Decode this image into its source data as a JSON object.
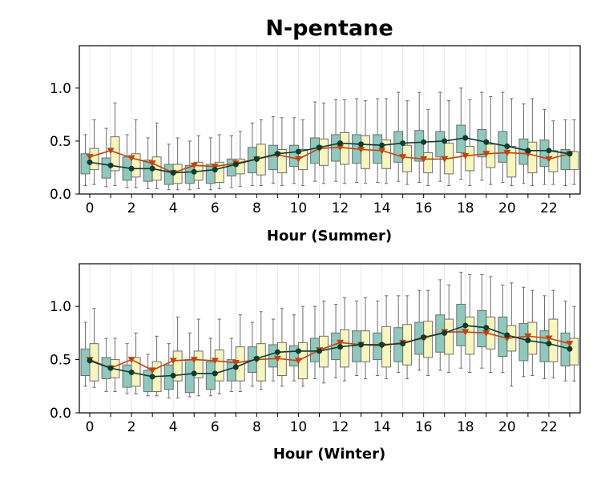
{
  "figure_title": "N-pentane",
  "chart_data": [
    {
      "type": "box",
      "name": "summer",
      "xlabel": "Hour (Summer)",
      "ylabel": "",
      "xlim": [
        -0.5,
        23.5
      ],
      "ylim": [
        0,
        1.4
      ],
      "x_ticks": [
        "0",
        "2",
        "4",
        "6",
        "8",
        "10",
        "12",
        "14",
        "16",
        "18",
        "20",
        "22"
      ],
      "y_ticks": [
        "0.0",
        "0.5",
        "1.0"
      ],
      "hours": [
        0,
        1,
        2,
        3,
        4,
        5,
        6,
        7,
        8,
        9,
        10,
        11,
        12,
        13,
        14,
        15,
        16,
        17,
        18,
        19,
        20,
        21,
        22,
        23
      ],
      "box_colors": {
        "teal": "#8fc8bd",
        "yellow": "#f8f6bf"
      },
      "line_colors": {
        "circles": "#0d3b2e",
        "triangles": "#c0440e"
      },
      "series": [
        {
          "name": "teal boxes",
          "boxes": [
            {
              "lw": 0.08,
              "q1": 0.19,
              "q3": 0.38,
              "uw": 0.56
            },
            {
              "lw": 0.07,
              "q1": 0.15,
              "q3": 0.34,
              "uw": 0.62
            },
            {
              "lw": 0.06,
              "q1": 0.13,
              "q3": 0.35,
              "uw": 0.56
            },
            {
              "lw": 0.05,
              "q1": 0.12,
              "q3": 0.32,
              "uw": 0.53
            },
            {
              "lw": 0.04,
              "q1": 0.09,
              "q3": 0.28,
              "uw": 0.47
            },
            {
              "lw": 0.04,
              "q1": 0.1,
              "q3": 0.27,
              "uw": 0.5
            },
            {
              "lw": 0.04,
              "q1": 0.1,
              "q3": 0.28,
              "uw": 0.53
            },
            {
              "lw": 0.06,
              "q1": 0.17,
              "q3": 0.33,
              "uw": 0.55
            },
            {
              "lw": 0.08,
              "q1": 0.2,
              "q3": 0.44,
              "uw": 0.67
            },
            {
              "lw": 0.1,
              "q1": 0.23,
              "q3": 0.46,
              "uw": 0.73
            },
            {
              "lw": 0.1,
              "q1": 0.26,
              "q3": 0.46,
              "uw": 0.72
            },
            {
              "lw": 0.12,
              "q1": 0.29,
              "q3": 0.53,
              "uw": 0.87
            },
            {
              "lw": 0.12,
              "q1": 0.31,
              "q3": 0.56,
              "uw": 0.89
            },
            {
              "lw": 0.11,
              "q1": 0.29,
              "q3": 0.56,
              "uw": 0.9
            },
            {
              "lw": 0.11,
              "q1": 0.29,
              "q3": 0.56,
              "uw": 0.9
            },
            {
              "lw": 0.12,
              "q1": 0.3,
              "q3": 0.59,
              "uw": 0.96
            },
            {
              "lw": 0.11,
              "q1": 0.31,
              "q3": 0.6,
              "uw": 0.96
            },
            {
              "lw": 0.12,
              "q1": 0.35,
              "q3": 0.59,
              "uw": 0.96
            },
            {
              "lw": 0.14,
              "q1": 0.39,
              "q3": 0.65,
              "uw": 1.0
            },
            {
              "lw": 0.13,
              "q1": 0.35,
              "q3": 0.61,
              "uw": 0.96
            },
            {
              "lw": 0.11,
              "q1": 0.3,
              "q3": 0.59,
              "uw": 0.96
            },
            {
              "lw": 0.1,
              "q1": 0.28,
              "q3": 0.52,
              "uw": 0.85
            },
            {
              "lw": 0.09,
              "q1": 0.26,
              "q3": 0.51,
              "uw": 0.8
            },
            {
              "lw": 0.08,
              "q1": 0.23,
              "q3": 0.42,
              "uw": 0.7
            }
          ]
        },
        {
          "name": "yellow boxes",
          "boxes": [
            {
              "lw": 0.09,
              "q1": 0.23,
              "q3": 0.43,
              "uw": 0.7
            },
            {
              "lw": 0.08,
              "q1": 0.22,
              "q3": 0.54,
              "uw": 0.86
            },
            {
              "lw": 0.06,
              "q1": 0.16,
              "q3": 0.38,
              "uw": 0.7
            },
            {
              "lw": 0.05,
              "q1": 0.13,
              "q3": 0.35,
              "uw": 0.67
            },
            {
              "lw": 0.04,
              "q1": 0.1,
              "q3": 0.28,
              "uw": 0.53
            },
            {
              "lw": 0.05,
              "q1": 0.13,
              "q3": 0.3,
              "uw": 0.55
            },
            {
              "lw": 0.05,
              "q1": 0.11,
              "q3": 0.3,
              "uw": 0.56
            },
            {
              "lw": 0.07,
              "q1": 0.19,
              "q3": 0.33,
              "uw": 0.59
            },
            {
              "lw": 0.08,
              "q1": 0.18,
              "q3": 0.47,
              "uw": 0.7
            },
            {
              "lw": 0.08,
              "q1": 0.2,
              "q3": 0.42,
              "uw": 0.72
            },
            {
              "lw": 0.08,
              "q1": 0.23,
              "q3": 0.42,
              "uw": 0.7
            },
            {
              "lw": 0.1,
              "q1": 0.27,
              "q3": 0.52,
              "uw": 0.86
            },
            {
              "lw": 0.1,
              "q1": 0.28,
              "q3": 0.58,
              "uw": 0.89
            },
            {
              "lw": 0.1,
              "q1": 0.24,
              "q3": 0.55,
              "uw": 0.88
            },
            {
              "lw": 0.1,
              "q1": 0.24,
              "q3": 0.51,
              "uw": 0.9
            },
            {
              "lw": 0.09,
              "q1": 0.21,
              "q3": 0.46,
              "uw": 0.88
            },
            {
              "lw": 0.08,
              "q1": 0.2,
              "q3": 0.39,
              "uw": 0.8
            },
            {
              "lw": 0.08,
              "q1": 0.19,
              "q3": 0.48,
              "uw": 0.88
            },
            {
              "lw": 0.08,
              "q1": 0.22,
              "q3": 0.45,
              "uw": 0.89
            },
            {
              "lw": 0.09,
              "q1": 0.25,
              "q3": 0.47,
              "uw": 0.92
            },
            {
              "lw": 0.08,
              "q1": 0.16,
              "q3": 0.45,
              "uw": 0.9
            },
            {
              "lw": 0.08,
              "q1": 0.2,
              "q3": 0.49,
              "uw": 0.9
            },
            {
              "lw": 0.09,
              "q1": 0.21,
              "q3": 0.41,
              "uw": 0.69
            },
            {
              "lw": 0.09,
              "q1": 0.23,
              "q3": 0.4,
              "uw": 0.7
            }
          ]
        },
        {
          "name": "circle line",
          "marker": "circle",
          "values": [
            0.3,
            0.27,
            0.24,
            0.24,
            0.2,
            0.21,
            0.23,
            0.28,
            0.33,
            0.38,
            0.4,
            0.44,
            0.48,
            0.47,
            0.46,
            0.48,
            0.49,
            0.5,
            0.53,
            0.49,
            0.45,
            0.41,
            0.41,
            0.38
          ]
        },
        {
          "name": "triangle line",
          "marker": "triangle-down",
          "values": [
            0.35,
            0.41,
            0.34,
            0.29,
            0.2,
            0.27,
            0.26,
            0.29,
            0.33,
            0.37,
            0.33,
            0.43,
            0.44,
            0.42,
            0.41,
            0.35,
            0.33,
            0.33,
            0.36,
            0.38,
            0.39,
            0.38,
            0.33,
            0.38
          ]
        }
      ]
    },
    {
      "type": "box",
      "name": "winter",
      "xlabel": "Hour (Winter)",
      "ylabel": "",
      "xlim": [
        -0.5,
        23.5
      ],
      "ylim": [
        0,
        1.4
      ],
      "x_ticks": [
        "0",
        "2",
        "4",
        "6",
        "8",
        "10",
        "12",
        "14",
        "16",
        "18",
        "20",
        "22"
      ],
      "y_ticks": [
        "0.0",
        "0.5",
        "1.0"
      ],
      "hours": [
        0,
        1,
        2,
        3,
        4,
        5,
        6,
        7,
        8,
        9,
        10,
        11,
        12,
        13,
        14,
        15,
        16,
        17,
        18,
        19,
        20,
        21,
        22,
        23
      ],
      "box_colors": {
        "teal": "#8fc8bd",
        "yellow": "#f8f6bf"
      },
      "line_colors": {
        "circles": "#0d3b2e",
        "triangles": "#c0440e"
      },
      "series": [
        {
          "name": "teal boxes",
          "boxes": [
            {
              "lw": 0.25,
              "q1": 0.35,
              "q3": 0.6,
              "uw": 0.85
            },
            {
              "lw": 0.2,
              "q1": 0.32,
              "q3": 0.52,
              "uw": 0.7
            },
            {
              "lw": 0.18,
              "q1": 0.24,
              "q3": 0.45,
              "uw": 0.65
            },
            {
              "lw": 0.16,
              "q1": 0.2,
              "q3": 0.4,
              "uw": 0.55
            },
            {
              "lw": 0.14,
              "q1": 0.22,
              "q3": 0.45,
              "uw": 0.65
            },
            {
              "lw": 0.15,
              "q1": 0.19,
              "q3": 0.5,
              "uw": 0.75
            },
            {
              "lw": 0.16,
              "q1": 0.22,
              "q3": 0.48,
              "uw": 0.7
            },
            {
              "lw": 0.2,
              "q1": 0.3,
              "q3": 0.5,
              "uw": 0.7
            },
            {
              "lw": 0.25,
              "q1": 0.38,
              "q3": 0.62,
              "uw": 0.85
            },
            {
              "lw": 0.3,
              "q1": 0.43,
              "q3": 0.64,
              "uw": 0.88
            },
            {
              "lw": 0.3,
              "q1": 0.44,
              "q3": 0.63,
              "uw": 0.92
            },
            {
              "lw": 0.32,
              "q1": 0.48,
              "q3": 0.7,
              "uw": 1.0
            },
            {
              "lw": 0.33,
              "q1": 0.5,
              "q3": 0.75,
              "uw": 1.02
            },
            {
              "lw": 0.35,
              "q1": 0.48,
              "q3": 0.77,
              "uw": 1.05
            },
            {
              "lw": 0.35,
              "q1": 0.5,
              "q3": 0.75,
              "uw": 1.05
            },
            {
              "lw": 0.38,
              "q1": 0.48,
              "q3": 0.8,
              "uw": 1.1
            },
            {
              "lw": 0.4,
              "q1": 0.55,
              "q3": 0.85,
              "uw": 1.15
            },
            {
              "lw": 0.4,
              "q1": 0.57,
              "q3": 0.92,
              "uw": 1.25
            },
            {
              "lw": 0.42,
              "q1": 0.63,
              "q3": 1.02,
              "uw": 1.32
            },
            {
              "lw": 0.42,
              "q1": 0.62,
              "q3": 0.96,
              "uw": 1.3
            },
            {
              "lw": 0.38,
              "q1": 0.53,
              "q3": 0.9,
              "uw": 1.2
            },
            {
              "lw": 0.34,
              "q1": 0.49,
              "q3": 0.84,
              "uw": 1.18
            },
            {
              "lw": 0.32,
              "q1": 0.48,
              "q3": 0.77,
              "uw": 1.1
            },
            {
              "lw": 0.3,
              "q1": 0.44,
              "q3": 0.75,
              "uw": 1.05
            }
          ]
        },
        {
          "name": "yellow boxes",
          "boxes": [
            {
              "lw": 0.24,
              "q1": 0.3,
              "q3": 0.65,
              "uw": 0.98
            },
            {
              "lw": 0.2,
              "q1": 0.33,
              "q3": 0.5,
              "uw": 0.7
            },
            {
              "lw": 0.18,
              "q1": 0.25,
              "q3": 0.52,
              "uw": 0.75
            },
            {
              "lw": 0.16,
              "q1": 0.2,
              "q3": 0.48,
              "uw": 0.72
            },
            {
              "lw": 0.14,
              "q1": 0.3,
              "q3": 0.58,
              "uw": 0.9
            },
            {
              "lw": 0.16,
              "q1": 0.33,
              "q3": 0.58,
              "uw": 0.88
            },
            {
              "lw": 0.18,
              "q1": 0.3,
              "q3": 0.59,
              "uw": 0.88
            },
            {
              "lw": 0.2,
              "q1": 0.3,
              "q3": 0.62,
              "uw": 0.92
            },
            {
              "lw": 0.22,
              "q1": 0.3,
              "q3": 0.65,
              "uw": 0.95
            },
            {
              "lw": 0.25,
              "q1": 0.35,
              "q3": 0.66,
              "uw": 0.98
            },
            {
              "lw": 0.25,
              "q1": 0.32,
              "q3": 0.66,
              "uw": 1.0
            },
            {
              "lw": 0.28,
              "q1": 0.43,
              "q3": 0.72,
              "uw": 1.05
            },
            {
              "lw": 0.3,
              "q1": 0.43,
              "q3": 0.78,
              "uw": 1.08
            },
            {
              "lw": 0.32,
              "q1": 0.48,
              "q3": 0.77,
              "uw": 1.08
            },
            {
              "lw": 0.32,
              "q1": 0.43,
              "q3": 0.81,
              "uw": 1.1
            },
            {
              "lw": 0.32,
              "q1": 0.45,
              "q3": 0.83,
              "uw": 1.1
            },
            {
              "lw": 0.35,
              "q1": 0.52,
              "q3": 0.86,
              "uw": 1.15
            },
            {
              "lw": 0.38,
              "q1": 0.55,
              "q3": 0.88,
              "uw": 1.2
            },
            {
              "lw": 0.38,
              "q1": 0.55,
              "q3": 0.9,
              "uw": 1.3
            },
            {
              "lw": 0.38,
              "q1": 0.6,
              "q3": 0.9,
              "uw": 1.28
            },
            {
              "lw": 0.25,
              "q1": 0.58,
              "q3": 0.82,
              "uw": 1.22
            },
            {
              "lw": 0.35,
              "q1": 0.55,
              "q3": 0.85,
              "uw": 1.15
            },
            {
              "lw": 0.33,
              "q1": 0.48,
              "q3": 0.88,
              "uw": 1.15
            },
            {
              "lw": 0.3,
              "q1": 0.45,
              "q3": 0.7,
              "uw": 1.0
            }
          ]
        },
        {
          "name": "circle line",
          "marker": "circle",
          "values": [
            0.49,
            0.42,
            0.38,
            0.34,
            0.35,
            0.37,
            0.37,
            0.43,
            0.51,
            0.57,
            0.58,
            0.58,
            0.62,
            0.64,
            0.64,
            0.65,
            0.71,
            0.75,
            0.82,
            0.8,
            0.73,
            0.68,
            0.65,
            0.6
          ]
        },
        {
          "name": "triangle line",
          "marker": "triangle-down",
          "values": [
            0.5,
            0.42,
            0.5,
            0.4,
            0.49,
            0.5,
            0.49,
            0.47,
            0.5,
            0.51,
            0.49,
            0.59,
            0.66,
            0.64,
            0.63,
            0.66,
            0.7,
            0.76,
            0.76,
            0.75,
            0.7,
            0.72,
            0.7,
            0.65
          ]
        }
      ]
    }
  ]
}
